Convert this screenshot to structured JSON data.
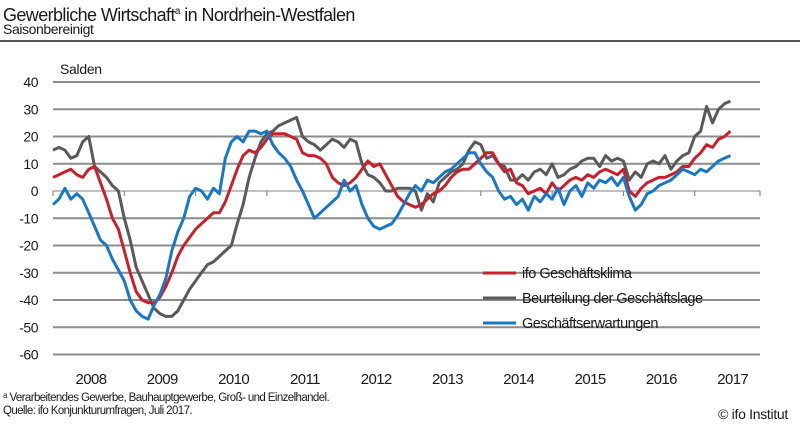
{
  "header": {
    "title": "Gewerbliche Wirtschaft",
    "title_superscript": "a",
    "title_suffix": " in Nordrhein-Westfalen",
    "subtitle": "Saisonbereinigt"
  },
  "footer": {
    "footnote_marker": "a",
    "footnote": " Verarbeitendes Gewerbe, Bauhauptgewerbe, Groß- und Einzelhandel.",
    "source": "Quelle: ifo Konjunkturumfragen, Juli 2017.",
    "copyright": "© ifo Institut"
  },
  "chart_data": {
    "type": "line",
    "title": "Gewerbliche Wirtschaft in Nordrhein-Westfalen",
    "subtitle": "Saisonbereinigt",
    "ylabel": "Salden",
    "xlabel": "",
    "ylim": [
      -60,
      40
    ],
    "yticks": [
      40,
      30,
      20,
      10,
      0,
      -10,
      -20,
      -30,
      -40,
      -50,
      -60
    ],
    "ytick_labels": [
      "40",
      "30",
      "20",
      "10",
      "0",
      "-10",
      "-20",
      "-30",
      "-40",
      "-50",
      "-60"
    ],
    "xtick_labels": [
      "2008",
      "2009",
      "2010",
      "2011",
      "2012",
      "2013",
      "2014",
      "2015",
      "2016",
      "2017"
    ],
    "x_start": "2008-01",
    "x_end": "2017-07",
    "x_frequency": "monthly",
    "grid": true,
    "legend_position": "bottom-right",
    "series": [
      {
        "name": "ifo Geschäftsklima",
        "color": "#c8202c",
        "values": [
          5,
          6,
          7,
          8,
          6,
          5,
          8,
          9,
          3,
          -3,
          -10,
          -14,
          -22,
          -30,
          -37,
          -40,
          -41,
          -41,
          -39,
          -35,
          -30,
          -24,
          -20,
          -17,
          -14,
          -12,
          -10,
          -8,
          -8,
          -4,
          2,
          8,
          13,
          15,
          14,
          16,
          19,
          21,
          21,
          21,
          20,
          19,
          14,
          13,
          13,
          12,
          10,
          5,
          3,
          2,
          3,
          5,
          8,
          11,
          9,
          10,
          6,
          2,
          -2,
          -4,
          -5,
          -6,
          -5,
          -3,
          -1,
          0,
          2,
          5,
          7,
          8,
          8,
          10,
          12,
          14,
          14,
          10,
          7,
          8,
          3,
          2,
          -1,
          0,
          1,
          -1,
          3,
          0,
          2,
          4,
          5,
          4,
          6,
          5,
          7,
          8,
          7,
          6,
          8,
          0,
          -2,
          1,
          3,
          4,
          5,
          5,
          6,
          7,
          9,
          9,
          12,
          14,
          17,
          16,
          19,
          20,
          22
        ]
      },
      {
        "name": "Beurteilung der Geschäftslage",
        "color": "#5a5a5a",
        "values": [
          15,
          16,
          15,
          12,
          13,
          18,
          20,
          9,
          7,
          5,
          2,
          0,
          -10,
          -18,
          -28,
          -33,
          -38,
          -43,
          -45,
          -46,
          -46,
          -44,
          -40,
          -36,
          -33,
          -30,
          -27,
          -26,
          -24,
          -22,
          -20,
          -12,
          -5,
          5,
          12,
          18,
          21,
          22,
          24,
          25,
          26,
          27,
          20,
          18,
          17,
          15,
          17,
          19,
          18,
          16,
          19,
          18,
          10,
          6,
          5,
          3,
          0,
          0,
          1,
          1,
          1,
          0,
          -7,
          -1,
          -4,
          3,
          5,
          7,
          8,
          10,
          15,
          18,
          17,
          12,
          13,
          10,
          9,
          4,
          4,
          6,
          4,
          7,
          8,
          6,
          10,
          5,
          6,
          8,
          9,
          11,
          12,
          12,
          9,
          13,
          11,
          12,
          11,
          4,
          7,
          5,
          10,
          11,
          10,
          13,
          8,
          11,
          13,
          14,
          20,
          22,
          31,
          25,
          30,
          32,
          33
        ]
      },
      {
        "name": "Geschäftserwartungen",
        "color": "#1a78c2",
        "values": [
          -5,
          -3,
          1,
          -3,
          -1,
          -3,
          -8,
          -13,
          -18,
          -20,
          -25,
          -29,
          -33,
          -40,
          -44,
          -46,
          -47,
          -42,
          -38,
          -32,
          -22,
          -15,
          -10,
          -2,
          1,
          0,
          -3,
          1,
          -1,
          12,
          18,
          20,
          18,
          22,
          22,
          21,
          22,
          17,
          14,
          12,
          9,
          4,
          0,
          -5,
          -10,
          -8,
          -6,
          -4,
          -2,
          4,
          0,
          2,
          -5,
          -10,
          -13,
          -14,
          -13,
          -12,
          -9,
          -5,
          -1,
          2,
          0,
          4,
          3,
          5,
          7,
          8,
          10,
          12,
          14,
          14,
          10,
          7,
          5,
          0,
          -3,
          -2,
          -5,
          -3,
          -7,
          -2,
          -4,
          -1,
          -3,
          1,
          -5,
          0,
          2,
          -2,
          3,
          1,
          4,
          3,
          5,
          2,
          5,
          -2,
          -7,
          -5,
          -1,
          0,
          2,
          3,
          4,
          6,
          8,
          7,
          6,
          8,
          7,
          9,
          11,
          12,
          13
        ]
      }
    ]
  }
}
